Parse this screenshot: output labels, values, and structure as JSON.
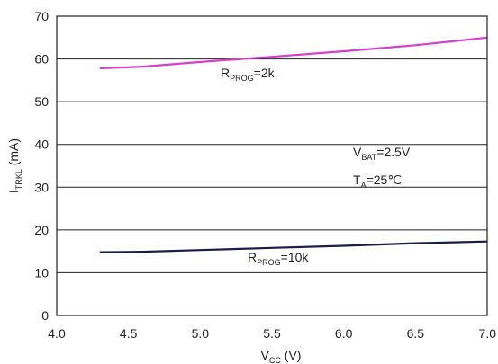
{
  "chart_data": {
    "type": "line",
    "xlabel": {
      "main": "V",
      "sub": "CC",
      "suffix": " (V)"
    },
    "ylabel": {
      "main": "I",
      "sub": "TRKL",
      "suffix": " (mA)"
    },
    "xlim": [
      4.0,
      7.0
    ],
    "ylim": [
      0,
      70
    ],
    "xticks": [
      "4.0",
      "4.5",
      "5.0",
      "5.5",
      "6.0",
      "6.5",
      "7.0"
    ],
    "yticks": [
      "0",
      "10",
      "20",
      "30",
      "40",
      "50",
      "60",
      "70"
    ],
    "grid": {
      "horizontal": true,
      "vertical": false
    },
    "series": [
      {
        "name": "R_PROG=2k",
        "label": {
          "main": "R",
          "sub": "PROG",
          "suffix": "=2k"
        },
        "color": "#d43fcf",
        "x": [
          4.3,
          4.6,
          5.0,
          5.5,
          6.0,
          6.5,
          7.0
        ],
        "y": [
          57.8,
          58.2,
          59.3,
          60.5,
          61.8,
          63.2,
          65.0
        ]
      },
      {
        "name": "R_PROG=10k",
        "label": {
          "main": "R",
          "sub": "PROG",
          "suffix": "=10k"
        },
        "color": "#1c1c4a",
        "x": [
          4.3,
          4.6,
          5.0,
          5.5,
          6.0,
          6.5,
          7.0
        ],
        "y": [
          14.8,
          14.9,
          15.3,
          15.8,
          16.3,
          16.9,
          17.3
        ]
      }
    ],
    "annotations": [
      {
        "main": "V",
        "sub": "BAT",
        "suffix": "=2.5V"
      },
      {
        "main": "T",
        "sub": "A",
        "suffix": "=25℃"
      }
    ]
  }
}
